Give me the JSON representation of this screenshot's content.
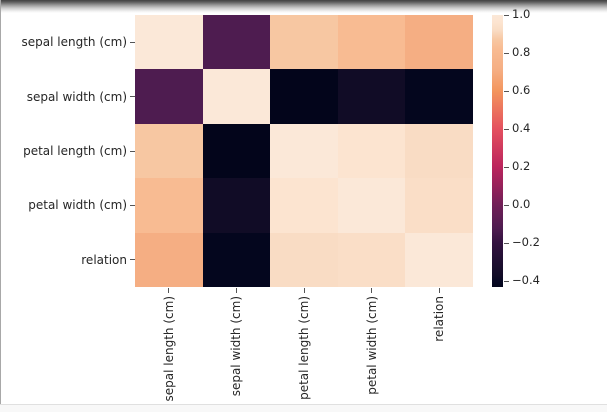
{
  "chart_data": {
    "type": "heatmap",
    "title": "",
    "categories": [
      "sepal length (cm)",
      "sepal width (cm)",
      "petal length (cm)",
      "petal width (cm)",
      "relation"
    ],
    "matrix": [
      [
        1.0,
        -0.12,
        0.87,
        0.82,
        0.71
      ],
      [
        -0.12,
        1.0,
        -0.43,
        -0.37,
        -0.42
      ],
      [
        0.87,
        -0.43,
        1.0,
        0.96,
        0.92
      ],
      [
        0.82,
        -0.37,
        0.96,
        1.0,
        0.93
      ],
      [
        0.71,
        -0.42,
        0.92,
        0.93,
        1.0
      ]
    ],
    "vmin": -0.43,
    "vmax": 1.0,
    "grid": false,
    "legend_position": "right",
    "colorbar": {
      "tick_values": [
        1.0,
        0.8,
        0.6,
        0.4,
        0.2,
        0.0,
        -0.2,
        -0.4
      ],
      "tick_labels": [
        "1.0",
        "0.8",
        "0.6",
        "0.4",
        "0.2",
        "0.0",
        "−0.2",
        "−0.4"
      ]
    },
    "colormap": {
      "name": "rocket",
      "stops": [
        {
          "v": -0.43,
          "c": "#03051b"
        },
        {
          "v": -0.4,
          "c": "#070823"
        },
        {
          "v": -0.37,
          "c": "#110c26"
        },
        {
          "v": -0.2,
          "c": "#32123f"
        },
        {
          "v": -0.12,
          "c": "#4e1c50"
        },
        {
          "v": 0.0,
          "c": "#701f57"
        },
        {
          "v": 0.2,
          "c": "#bb245d"
        },
        {
          "v": 0.4,
          "c": "#e4505f"
        },
        {
          "v": 0.6,
          "c": "#f3955d"
        },
        {
          "v": 0.71,
          "c": "#f5ae83"
        },
        {
          "v": 0.82,
          "c": "#f8bb92"
        },
        {
          "v": 0.87,
          "c": "#f7c7a2"
        },
        {
          "v": 0.92,
          "c": "#f9dcc4"
        },
        {
          "v": 0.96,
          "c": "#fce4d0"
        },
        {
          "v": 1.0,
          "c": "#fbe8d8"
        }
      ]
    }
  }
}
